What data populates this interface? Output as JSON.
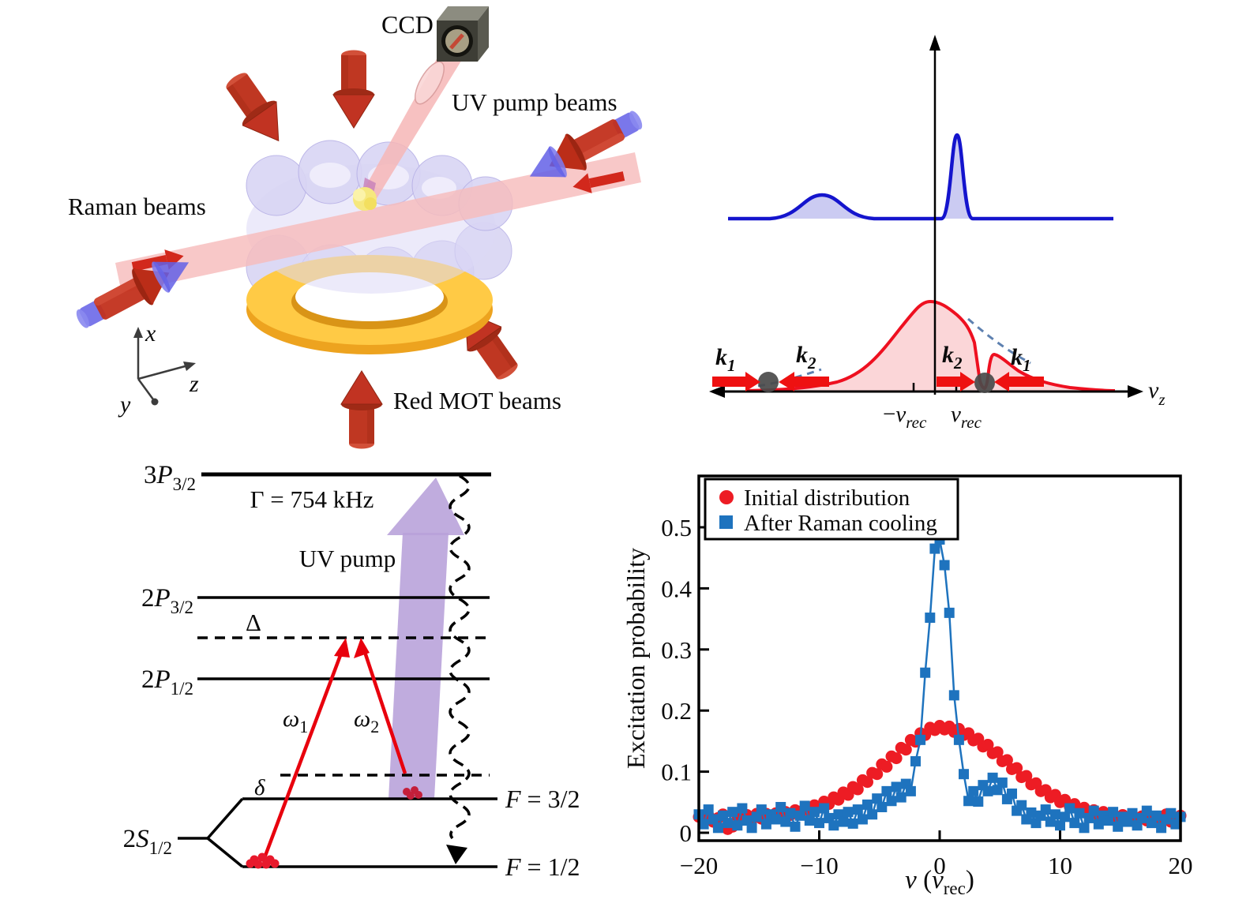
{
  "setup": {
    "ccd_label": "CCD",
    "uv_pump_beams_label": "UV pump beams",
    "raman_beams_label": "Raman beams",
    "red_mot_beams_label": "Red MOT beams",
    "axis_x": "x",
    "axis_y": "y",
    "axis_z": "z",
    "colors": {
      "mot_arrow_red": "#bf3722",
      "beam_pink": "#f7bcbc",
      "cone_blue": "#6360e6",
      "ring_gold": "#ffca45",
      "chamber_lavender": "#d9d5f4",
      "atom_yellow": "#f6e87e"
    }
  },
  "velocity": {
    "k1": {
      "base": "k",
      "sub": "1"
    },
    "k2": {
      "base": "k",
      "sub": "2"
    },
    "neg_vrec": {
      "sign": "−",
      "base": "v",
      "sub": "rec"
    },
    "pos_vrec": {
      "base": "v",
      "sub": "rec"
    },
    "vz": {
      "base": "v",
      "sub": "z"
    },
    "colors": {
      "blue_curve": "#1414cd",
      "blue_fill": "#cbcbf2",
      "red_curve": "#ee1020",
      "red_fill": "#fbd6d8",
      "dashed_envelope": "#5e81b0",
      "atom_gray": "#4a4a4a",
      "arrow_red": "#ee1111"
    }
  },
  "levels": {
    "l3p": {
      "n": "3",
      "l": "P",
      "sub": "3/2"
    },
    "gamma": "Γ = 754 kHz",
    "uv_pump": "UV pump",
    "l2p32": {
      "n": "2",
      "l": "P",
      "sub": "3/2"
    },
    "big_delta": "Δ",
    "l2p12": {
      "n": "2",
      "l": "P",
      "sub": "1/2"
    },
    "omega1": {
      "l": "ω",
      "sub": "1"
    },
    "omega2": {
      "l": "ω",
      "sub": "2"
    },
    "small_delta": "δ",
    "l2s": {
      "n": "2",
      "l": "S",
      "sub": "1/2"
    },
    "f32": {
      "l": "F",
      "rest": " = 3/2"
    },
    "f12": {
      "l": "F",
      "rest": " = 1/2"
    },
    "colors": {
      "raman_arrow": "#e8000d",
      "uv_arrow": "#b7a0d9",
      "atoms_red": "#e8192c"
    }
  },
  "chart_data": {
    "type": "scatter",
    "xlabel": {
      "v": "v",
      "open": " (",
      "v2": "v",
      "sub": "rec",
      "close": ")"
    },
    "ylabel": "Excitation probability",
    "xlim": [
      -20,
      20
    ],
    "ylim": [
      -0.013,
      0.585
    ],
    "x_ticks": [
      -20,
      -10,
      0,
      10,
      20
    ],
    "y_ticks": [
      0,
      0.1,
      0.2,
      0.3,
      0.4,
      0.5
    ],
    "grid": false,
    "legend_position": "top-left",
    "legend": [
      {
        "label": "Initial distribution",
        "marker": "circle",
        "color": "#ed1c24"
      },
      {
        "label": "After Raman cooling",
        "marker": "square",
        "color": "#1e73be"
      }
    ],
    "series": [
      {
        "name": "Initial distribution",
        "marker": "circle",
        "color": "#ed1c24",
        "line": false,
        "points": [
          [
            -20,
            0.026
          ],
          [
            -19.6,
            0.02
          ],
          [
            -19.2,
            0.028
          ],
          [
            -18.8,
            0.018
          ],
          [
            -18.4,
            0.024
          ],
          [
            -18,
            0.03
          ],
          [
            -17.6,
            0.006
          ],
          [
            -17.2,
            0.01
          ],
          [
            -16.8,
            0.027
          ],
          [
            -16.4,
            0.021
          ],
          [
            -16,
            0.029
          ],
          [
            -15.6,
            0.022
          ],
          [
            -15.2,
            0.031
          ],
          [
            -14.8,
            0.023
          ],
          [
            -14.4,
            0.031
          ],
          [
            -14,
            0.025
          ],
          [
            -13.6,
            0.032
          ],
          [
            -13.2,
            0.027
          ],
          [
            -12.8,
            0.034
          ],
          [
            -12.4,
            0.029
          ],
          [
            -12,
            0.037
          ],
          [
            -11.6,
            0.032
          ],
          [
            -11.2,
            0.04
          ],
          [
            -10.8,
            0.036
          ],
          [
            -10.4,
            0.045
          ],
          [
            -10,
            0.041
          ],
          [
            -9.6,
            0.051
          ],
          [
            -9.2,
            0.047
          ],
          [
            -8.8,
            0.058
          ],
          [
            -8.4,
            0.054
          ],
          [
            -8,
            0.066
          ],
          [
            -7.6,
            0.062
          ],
          [
            -7.2,
            0.075
          ],
          [
            -6.8,
            0.071
          ],
          [
            -6.4,
            0.086
          ],
          [
            -6,
            0.083
          ],
          [
            -5.6,
            0.098
          ],
          [
            -5.2,
            0.096
          ],
          [
            -4.8,
            0.112
          ],
          [
            -4.4,
            0.108
          ],
          [
            -4,
            0.125
          ],
          [
            -3.6,
            0.122
          ],
          [
            -3.2,
            0.139
          ],
          [
            -2.8,
            0.136
          ],
          [
            -2.4,
            0.152
          ],
          [
            -2,
            0.149
          ],
          [
            -1.6,
            0.163
          ],
          [
            -1.2,
            0.16
          ],
          [
            -0.8,
            0.172
          ],
          [
            -0.4,
            0.168
          ],
          [
            0,
            0.175
          ],
          [
            0.4,
            0.169
          ],
          [
            0.8,
            0.174
          ],
          [
            1.2,
            0.165
          ],
          [
            1.6,
            0.17
          ],
          [
            2,
            0.16
          ],
          [
            2.4,
            0.163
          ],
          [
            2.8,
            0.151
          ],
          [
            3.2,
            0.154
          ],
          [
            3.6,
            0.141
          ],
          [
            4,
            0.144
          ],
          [
            4.4,
            0.13
          ],
          [
            4.8,
            0.132
          ],
          [
            5.2,
            0.117
          ],
          [
            5.6,
            0.119
          ],
          [
            6,
            0.104
          ],
          [
            6.4,
            0.106
          ],
          [
            6.8,
            0.091
          ],
          [
            7.2,
            0.093
          ],
          [
            7.6,
            0.079
          ],
          [
            8,
            0.081
          ],
          [
            8.4,
            0.068
          ],
          [
            8.8,
            0.07
          ],
          [
            9.2,
            0.058
          ],
          [
            9.6,
            0.062
          ],
          [
            10,
            0.05
          ],
          [
            10.4,
            0.054
          ],
          [
            10.8,
            0.043
          ],
          [
            11.2,
            0.047
          ],
          [
            11.6,
            0.037
          ],
          [
            12,
            0.041
          ],
          [
            12.4,
            0.032
          ],
          [
            12.8,
            0.037
          ],
          [
            13.2,
            0.029
          ],
          [
            13.6,
            0.034
          ],
          [
            14,
            0.026
          ],
          [
            14.4,
            0.031
          ],
          [
            14.8,
            0.024
          ],
          [
            15.2,
            0.029
          ],
          [
            15.6,
            0.022
          ],
          [
            16,
            0.028
          ],
          [
            16.4,
            0.021
          ],
          [
            16.8,
            0.027
          ],
          [
            17.2,
            0.02
          ],
          [
            17.6,
            0.026
          ],
          [
            18,
            0.019
          ],
          [
            18.4,
            0.025
          ],
          [
            18.8,
            0.03
          ],
          [
            19.2,
            0.018
          ],
          [
            19.6,
            0.024
          ],
          [
            20,
            0.028
          ]
        ]
      },
      {
        "name": "After Raman cooling",
        "marker": "square",
        "color": "#1e73be",
        "line": true,
        "points": [
          [
            -20,
            0.03
          ],
          [
            -19.6,
            0.014
          ],
          [
            -19.2,
            0.038
          ],
          [
            -18.8,
            0.022
          ],
          [
            -18.4,
            0.008
          ],
          [
            -18,
            0.028
          ],
          [
            -17.6,
            0.016
          ],
          [
            -17.2,
            0.034
          ],
          [
            -16.8,
            0.012
          ],
          [
            -16.4,
            0.04
          ],
          [
            -16,
            0.02
          ],
          [
            -15.6,
            0.008
          ],
          [
            -15.2,
            0.026
          ],
          [
            -14.8,
            0.038
          ],
          [
            -14.4,
            0.014
          ],
          [
            -14,
            0.03
          ],
          [
            -13.6,
            0.022
          ],
          [
            -13.2,
            0.042
          ],
          [
            -12.8,
            0.018
          ],
          [
            -12.4,
            0.032
          ],
          [
            -12,
            0.01
          ],
          [
            -11.6,
            0.028
          ],
          [
            -11.2,
            0.044
          ],
          [
            -10.8,
            0.02
          ],
          [
            -10.4,
            0.034
          ],
          [
            -10,
            0.016
          ],
          [
            -9.6,
            0.04
          ],
          [
            -9.2,
            0.024
          ],
          [
            -8.8,
            0.012
          ],
          [
            -8.4,
            0.03
          ],
          [
            -8,
            0.018
          ],
          [
            -7.6,
            0.034
          ],
          [
            -7.2,
            0.015
          ],
          [
            -6.8,
            0.038
          ],
          [
            -6.4,
            0.022
          ],
          [
            -6,
            0.046
          ],
          [
            -5.6,
            0.03
          ],
          [
            -5.2,
            0.056
          ],
          [
            -4.8,
            0.042
          ],
          [
            -4.4,
            0.068
          ],
          [
            -4,
            0.052
          ],
          [
            -3.6,
            0.075
          ],
          [
            -3.2,
            0.058
          ],
          [
            -2.8,
            0.08
          ],
          [
            -2.4,
            0.068
          ],
          [
            -2,
            0.117
          ],
          [
            -1.6,
            0.152
          ],
          [
            -1.2,
            0.262
          ],
          [
            -0.8,
            0.352
          ],
          [
            -0.4,
            0.465
          ],
          [
            0,
            0.48
          ],
          [
            0.4,
            0.438
          ],
          [
            0.8,
            0.36
          ],
          [
            1.2,
            0.225
          ],
          [
            1.6,
            0.152
          ],
          [
            2,
            0.096
          ],
          [
            2.4,
            0.052
          ],
          [
            2.8,
            0.068
          ],
          [
            3.2,
            0.051
          ],
          [
            3.6,
            0.078
          ],
          [
            4,
            0.068
          ],
          [
            4.4,
            0.09
          ],
          [
            4.8,
            0.07
          ],
          [
            5.2,
            0.082
          ],
          [
            5.6,
            0.055
          ],
          [
            6,
            0.064
          ],
          [
            6.4,
            0.036
          ],
          [
            6.8,
            0.045
          ],
          [
            7.2,
            0.022
          ],
          [
            7.6,
            0.033
          ],
          [
            8,
            0.016
          ],
          [
            8.4,
            0.028
          ],
          [
            8.8,
            0.038
          ],
          [
            9.2,
            0.018
          ],
          [
            9.6,
            0.03
          ],
          [
            10,
            0.012
          ],
          [
            10.4,
            0.026
          ],
          [
            10.8,
            0.04
          ],
          [
            11.2,
            0.016
          ],
          [
            11.6,
            0.032
          ],
          [
            12,
            0.008
          ],
          [
            12.4,
            0.024
          ],
          [
            12.8,
            0.036
          ],
          [
            13.2,
            0.014
          ],
          [
            13.6,
            0.028
          ],
          [
            14,
            0.02
          ],
          [
            14.4,
            0.034
          ],
          [
            14.8,
            0.01
          ],
          [
            15.2,
            0.026
          ],
          [
            15.6,
            0.018
          ],
          [
            16,
            0.032
          ],
          [
            16.4,
            0.012
          ],
          [
            16.8,
            0.024
          ],
          [
            17.2,
            0.036
          ],
          [
            17.6,
            0.016
          ],
          [
            18,
            0.028
          ],
          [
            18.4,
            0.008
          ],
          [
            18.8,
            0.022
          ],
          [
            19.2,
            0.032
          ],
          [
            19.6,
            0.014
          ],
          [
            20,
            0.026
          ]
        ]
      }
    ]
  }
}
